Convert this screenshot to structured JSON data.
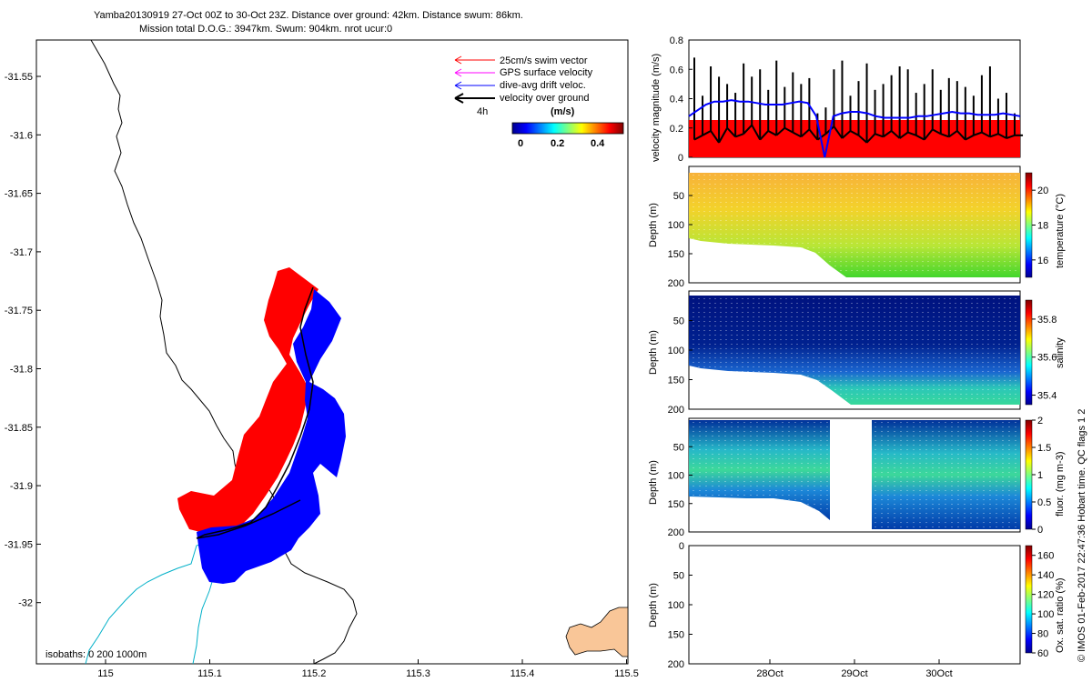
{
  "header": {
    "line1": "Yamba20130919 27-Oct 00Z to 30-Oct 23Z. Distance over ground: 42km. Distance swum: 86km.",
    "line2": "Mission total D.O.G.: 3947km. Swum: 904km. nrot ucur:0"
  },
  "map": {
    "x_ticks": [
      "115",
      "115.1",
      "115.2",
      "115.3",
      "115.4",
      "115.5"
    ],
    "y_ticks": [
      "-31.55",
      "-31.6",
      "-31.65",
      "-31.7",
      "-31.75",
      "-31.8",
      "-31.85",
      "-31.9",
      "-31.95",
      "-32"
    ],
    "isobaths_label": "isobaths: 0   200  1000m",
    "legend": [
      {
        "label": "25cm/s swim vector",
        "color": "#ff0000"
      },
      {
        "label": "GPS surface velocity",
        "color": "#ff00ff"
      },
      {
        "label": "dive-avg drift veloc.",
        "color": "#0000ff"
      },
      {
        "label": "velocity over ground",
        "color": "#000000"
      }
    ],
    "time_scale_label": "4h",
    "colorbar": {
      "title": "(m/s)",
      "ticks": [
        "0",
        "0.2",
        "0.4"
      ]
    },
    "colors": {
      "swim": "#ff0000",
      "drift": "#0000ff",
      "coast": "#000000",
      "isobath200": "#00b0c8",
      "land": "#f9c698"
    }
  },
  "chart_data": [
    {
      "type": "line",
      "name": "velocity",
      "ylabel": "velocity magnitude (m/s)",
      "ylim": [
        0,
        0.8
      ],
      "y_ticks": [
        "0",
        "0.2",
        "0.4",
        "0.6",
        "0.8"
      ],
      "red_band_top": 0.25,
      "drift_series": [
        0.28,
        0.32,
        0.36,
        0.38,
        0.38,
        0.39,
        0.38,
        0.38,
        0.37,
        0.36,
        0.36,
        0.36,
        0.37,
        0.38,
        0.37,
        0.28,
        0.0,
        0.28,
        0.3,
        0.31,
        0.31,
        0.3,
        0.28,
        0.27,
        0.27,
        0.27,
        0.27,
        0.28,
        0.28,
        0.29,
        0.3,
        0.31,
        0.3,
        0.3,
        0.29,
        0.29,
        0.29,
        0.3,
        0.29,
        0.28
      ],
      "ground_series": [
        0.12,
        0.15,
        0.18,
        0.1,
        0.2,
        0.14,
        0.16,
        0.22,
        0.12,
        0.18,
        0.15,
        0.2,
        0.17,
        0.14,
        0.19,
        0.12,
        0.16,
        0.21,
        0.13,
        0.18,
        0.15,
        0.1,
        0.16,
        0.14,
        0.18,
        0.13,
        0.17,
        0.15,
        0.12,
        0.19,
        0.16,
        0.14,
        0.18,
        0.12,
        0.15,
        0.17,
        0.14,
        0.16,
        0.13,
        0.15
      ]
    },
    {
      "type": "heatmap",
      "name": "temperature",
      "ylabel": "Depth (m)",
      "y_ticks": [
        "50",
        "100",
        "150",
        "200"
      ],
      "colorbar_label": "temperature (°C)",
      "colorbar_ticks": [
        "16",
        "18",
        "20"
      ],
      "clim": [
        15,
        21
      ]
    },
    {
      "type": "heatmap",
      "name": "salinity",
      "ylabel": "Depth (m)",
      "y_ticks": [
        "50",
        "100",
        "150",
        "200"
      ],
      "colorbar_label": "salinity",
      "colorbar_ticks": [
        "35.4",
        "35.6",
        "35.8"
      ],
      "clim": [
        35.35,
        35.9
      ]
    },
    {
      "type": "heatmap",
      "name": "fluorescence",
      "ylabel": "Depth (m)",
      "y_ticks": [
        "50",
        "100",
        "150",
        "200"
      ],
      "colorbar_label": "fluor. (mg m-3)",
      "colorbar_ticks": [
        "0",
        "0.5",
        "1",
        "1.5",
        "2"
      ],
      "clim": [
        0,
        2
      ]
    },
    {
      "type": "heatmap",
      "name": "oxygen",
      "ylabel": "Depth (m)",
      "y_ticks": [
        "0",
        "50",
        "100",
        "150",
        "200"
      ],
      "colorbar_label": "Ox. sat. ratio (%)",
      "colorbar_ticks": [
        "60",
        "80",
        "100",
        "120",
        "140",
        "160"
      ],
      "clim": [
        60,
        170
      ],
      "x_ticks": [
        "28Oct",
        "29Oct",
        "30Oct"
      ]
    }
  ],
  "credit": "© IMOS 01-Feb-2017 22:47:36 Hobart time. QC flags 1  2"
}
